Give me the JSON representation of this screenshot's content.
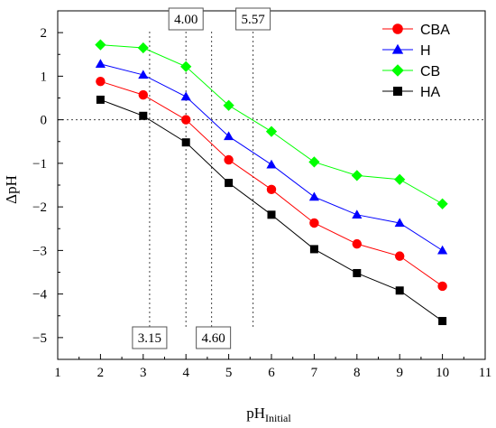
{
  "chart_data": {
    "type": "line",
    "title": "",
    "xlabel": "pH",
    "xlabel_sub": "Initial",
    "ylabel": "ΔpH",
    "xlim": [
      1,
      11
    ],
    "ylim": [
      -5.5,
      2.5
    ],
    "x_ticks": [
      1,
      2,
      3,
      4,
      5,
      6,
      7,
      8,
      9,
      10,
      11
    ],
    "y_ticks": [
      2,
      1,
      0,
      -1,
      -2,
      -3,
      -4,
      -5
    ],
    "y_tick_labels": [
      "2",
      "1",
      "0",
      "−1",
      "−2",
      "−3",
      "−4",
      "−5"
    ],
    "grid": false,
    "legend_position": "top-right",
    "x": [
      2,
      3,
      4,
      5,
      6,
      7,
      8,
      9,
      10
    ],
    "series": [
      {
        "name": "CBA",
        "color": "#ff0000",
        "marker": "circle",
        "values": [
          0.88,
          0.57,
          0.0,
          -0.92,
          -1.6,
          -2.37,
          -2.85,
          -3.13,
          -3.82
        ]
      },
      {
        "name": "H",
        "color": "#0000ff",
        "marker": "triangle",
        "values": [
          1.28,
          1.03,
          0.53,
          -0.38,
          -1.03,
          -1.77,
          -2.18,
          -2.37,
          -3.0
        ]
      },
      {
        "name": "CB",
        "color": "#00ff00",
        "marker": "diamond",
        "values": [
          1.72,
          1.65,
          1.22,
          0.33,
          -0.27,
          -0.97,
          -1.28,
          -1.37,
          -1.93
        ]
      },
      {
        "name": "HA",
        "color": "#000000",
        "marker": "square",
        "values": [
          0.46,
          0.09,
          -0.52,
          -1.45,
          -2.18,
          -2.97,
          -3.52,
          -3.92,
          -4.62
        ]
      }
    ],
    "reference_lines": {
      "horizontal_y": 0,
      "vertical_x": [
        3.15,
        4.0,
        4.6,
        5.57
      ]
    },
    "annotations": [
      {
        "text": "4.00",
        "x": 4.0,
        "position": "top"
      },
      {
        "text": "5.57",
        "x": 5.57,
        "position": "top"
      },
      {
        "text": "3.15",
        "x": 3.15,
        "position": "bottom"
      },
      {
        "text": "4.60",
        "x": 4.6,
        "position": "bottom"
      }
    ]
  }
}
